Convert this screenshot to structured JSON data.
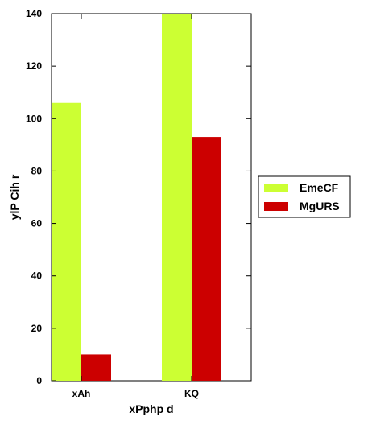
{
  "chart_data": {
    "type": "bar",
    "categories": [
      "xAh",
      "KQ"
    ],
    "series": [
      {
        "name": "EmeCF",
        "color": "#ccff33",
        "values": [
          106,
          140
        ]
      },
      {
        "name": "MgURS",
        "color": "#cc0000",
        "values": [
          10,
          93
        ]
      }
    ],
    "xlabel": "xPphp  d",
    "ylabel": "ylP Cih  r",
    "ylim": [
      0,
      140
    ],
    "yticks": [
      0,
      20,
      40,
      60,
      80,
      100,
      120,
      140
    ],
    "grid": false,
    "legend_position": "right"
  }
}
